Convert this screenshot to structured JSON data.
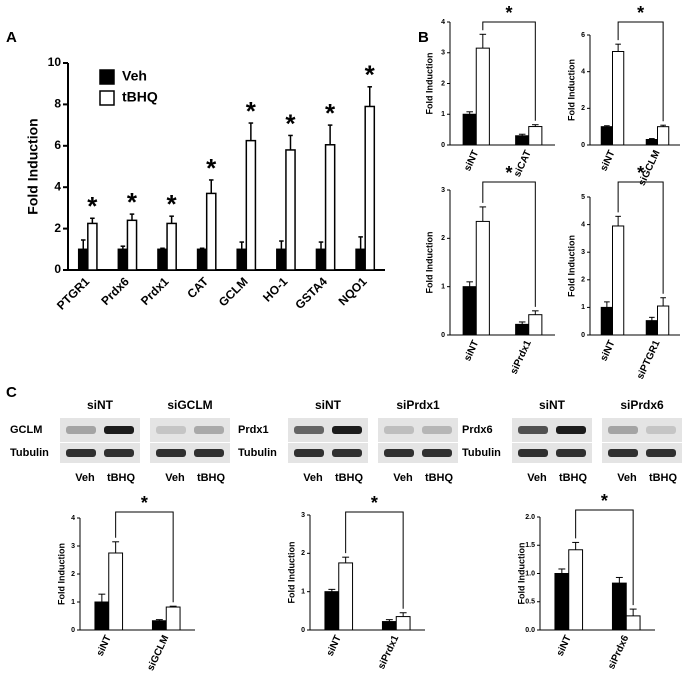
{
  "panel_labels": [
    "A",
    "B",
    "C"
  ],
  "blots": [
    {
      "groups": [
        "siNT",
        "siGCLM"
      ],
      "rows": [
        "GCLM",
        "Tubulin"
      ],
      "lanes": [
        "Veh",
        "tBHQ",
        "Veh",
        "tBHQ"
      ]
    },
    {
      "groups": [
        "siNT",
        "siPrdx1"
      ],
      "rows": [
        "Prdx1",
        "Tubulin"
      ],
      "lanes": [
        "Veh",
        "tBHQ",
        "Veh",
        "tBHQ"
      ]
    },
    {
      "groups": [
        "siNT",
        "siPrdx6"
      ],
      "rows": [
        "Prdx6",
        "Tubulin"
      ],
      "lanes": [
        "Veh",
        "tBHQ",
        "Veh",
        "tBHQ"
      ]
    }
  ],
  "chart_data": [
    {
      "type": "bar",
      "y_label": "Fold Induction",
      "categories": [
        "PTGR1",
        "Prdx6",
        "Prdx1",
        "CAT",
        "GCLM",
        "HO-1",
        "GSTA4",
        "NQO1"
      ],
      "series": [
        {
          "name": "Veh",
          "color": "#000000",
          "values": [
            1.0,
            1.0,
            1.0,
            1.0,
            1.0,
            1.0,
            1.0,
            1.0
          ],
          "errors": [
            0.45,
            0.15,
            0.05,
            0.05,
            0.35,
            0.4,
            0.35,
            0.6
          ]
        },
        {
          "name": "tBHQ",
          "color": "#ffffff",
          "values": [
            2.25,
            2.4,
            2.25,
            3.7,
            6.25,
            5.8,
            6.05,
            7.9
          ],
          "errors": [
            0.25,
            0.3,
            0.35,
            0.65,
            0.85,
            0.7,
            0.95,
            0.95
          ]
        }
      ],
      "significance_labels": [
        "*",
        "*",
        "*",
        "*",
        "*",
        "*",
        "*",
        "*"
      ],
      "ylim": [
        0,
        10
      ],
      "yticks": [
        0,
        2,
        4,
        6,
        8,
        10
      ],
      "legend": "upper-left"
    },
    {
      "type": "bar",
      "y_label": "Fold Induction",
      "categories": [
        "siNT",
        "siCAT"
      ],
      "series": [
        {
          "color": "#000000",
          "values": [
            1.0,
            0.3
          ],
          "errors": [
            0.08,
            0.05
          ]
        },
        {
          "color": "#ffffff",
          "values": [
            3.15,
            0.6
          ],
          "errors": [
            0.45,
            0.06
          ]
        }
      ],
      "significance_label": "*",
      "ylim": [
        0,
        4
      ],
      "yticks": [
        0,
        1,
        2,
        3,
        4
      ]
    },
    {
      "type": "bar",
      "y_label": "Fold Induction",
      "categories": [
        "siNT",
        "siGCLM"
      ],
      "series": [
        {
          "color": "#000000",
          "values": [
            1.0,
            0.3
          ],
          "errors": [
            0.05,
            0.05
          ]
        },
        {
          "color": "#ffffff",
          "values": [
            5.1,
            1.0
          ],
          "errors": [
            0.4,
            0.08
          ]
        }
      ],
      "significance_label": "*",
      "ylim": [
        0,
        6
      ],
      "yticks": [
        0,
        2,
        4,
        6
      ]
    },
    {
      "type": "bar",
      "y_label": "Fold Induction",
      "categories": [
        "siNT",
        "siPrdx1"
      ],
      "series": [
        {
          "color": "#000000",
          "values": [
            1.0,
            0.22
          ],
          "errors": [
            0.1,
            0.05
          ]
        },
        {
          "color": "#ffffff",
          "values": [
            2.35,
            0.42
          ],
          "errors": [
            0.3,
            0.08
          ]
        }
      ],
      "significance_label": "*",
      "ylim": [
        0,
        3
      ],
      "yticks": [
        0,
        1,
        2,
        3
      ]
    },
    {
      "type": "bar",
      "y_label": "Fold Induction",
      "categories": [
        "siNT",
        "siPTGR1"
      ],
      "series": [
        {
          "color": "#000000",
          "values": [
            1.0,
            0.52
          ],
          "errors": [
            0.2,
            0.12
          ]
        },
        {
          "color": "#ffffff",
          "values": [
            3.95,
            1.05
          ],
          "errors": [
            0.35,
            0.3
          ]
        }
      ],
      "significance_label": "*",
      "ylim": [
        0,
        5
      ],
      "yticks": [
        0,
        1,
        2,
        3,
        4,
        5
      ]
    },
    {
      "type": "bar",
      "y_label": "Fold Induction",
      "categories": [
        "siNT",
        "siGCLM"
      ],
      "series": [
        {
          "color": "#000000",
          "values": [
            1.0,
            0.33
          ],
          "errors": [
            0.28,
            0.04
          ]
        },
        {
          "color": "#ffffff",
          "values": [
            2.75,
            0.82
          ],
          "errors": [
            0.4,
            0.03
          ]
        }
      ],
      "significance_label": "*",
      "ylim": [
        0,
        4
      ],
      "yticks": [
        0,
        1,
        2,
        3,
        4
      ]
    },
    {
      "type": "bar",
      "y_label": "Fold Induction",
      "categories": [
        "siNT",
        "siPrdx1"
      ],
      "series": [
        {
          "color": "#000000",
          "values": [
            1.0,
            0.22
          ],
          "errors": [
            0.06,
            0.05
          ]
        },
        {
          "color": "#ffffff",
          "values": [
            1.75,
            0.35
          ],
          "errors": [
            0.15,
            0.1
          ]
        }
      ],
      "significance_label": "*",
      "ylim": [
        0,
        3
      ],
      "yticks": [
        0,
        1,
        2,
        3
      ]
    },
    {
      "type": "bar",
      "y_label": "Fold Induction",
      "categories": [
        "siNT",
        "siPrdx6"
      ],
      "series": [
        {
          "color": "#000000",
          "values": [
            1.0,
            0.83
          ],
          "errors": [
            0.08,
            0.1
          ]
        },
        {
          "color": "#ffffff",
          "values": [
            1.42,
            0.25
          ],
          "errors": [
            0.13,
            0.12
          ]
        }
      ],
      "significance_label": "*",
      "ylim": [
        0,
        2
      ],
      "yticks": [
        {
          "value": 0,
          "label": "0.0"
        },
        {
          "value": 0.5,
          "label": "0.5"
        },
        {
          "value": 1,
          "label": "1.0"
        },
        {
          "value": 1.5,
          "label": "1.5"
        },
        {
          "value": 2,
          "label": "2.0"
        }
      ]
    }
  ]
}
